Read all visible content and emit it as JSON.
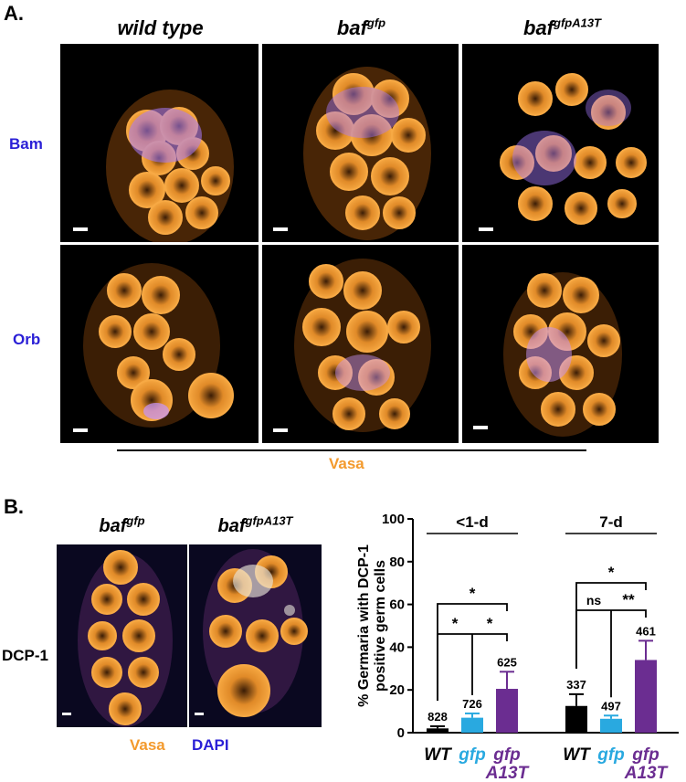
{
  "panelA": {
    "letter": "A.",
    "columns": [
      {
        "name": "wild type",
        "sup": ""
      },
      {
        "name": "baf",
        "sup": "gfp"
      },
      {
        "name": "baf",
        "sup": "gfpA13T"
      }
    ],
    "rows": [
      "Bam",
      "Orb"
    ],
    "channel_label": "Vasa",
    "colors": {
      "vasa": "#f39a2d",
      "marker": "#9b6bff",
      "dapi": "#2a1fd6"
    }
  },
  "panelB": {
    "letter": "B.",
    "columns": [
      {
        "name": "baf",
        "sup": "gfp"
      },
      {
        "name": "baf",
        "sup": "gfpA13T"
      }
    ],
    "row_label": "DCP-1",
    "legend": {
      "vasa": "Vasa",
      "dapi": "DAPI"
    }
  },
  "chart_data": {
    "type": "bar",
    "ylabel": "% Germaria with DCP-1 positive germ cells",
    "ylabel_lines": [
      "% Germaria with DCP-1",
      "positive germ cells"
    ],
    "ylim": [
      0,
      100
    ],
    "yticks": [
      0,
      20,
      40,
      60,
      80,
      100
    ],
    "groups": [
      {
        "name": "<1-d",
        "bars": [
          {
            "category": "WT",
            "value": 2,
            "error": 1,
            "n": "828",
            "color": "#000000"
          },
          {
            "category": "gfp",
            "value": 7,
            "error": 2,
            "n": "726",
            "color": "#29a9e0"
          },
          {
            "category": "gfp A13T",
            "value": 20.5,
            "error": 8,
            "n": "625",
            "color": "#6b2d91"
          }
        ],
        "significance": [
          {
            "pair": [
              "WT",
              "gfp A13T"
            ],
            "label": "*"
          },
          {
            "pair": [
              "WT",
              "gfp"
            ],
            "label": "*"
          },
          {
            "pair": [
              "gfp",
              "gfp A13T"
            ],
            "label": "*"
          }
        ]
      },
      {
        "name": "7-d",
        "bars": [
          {
            "category": "WT",
            "value": 12.5,
            "error": 5.5,
            "n": "337",
            "color": "#000000"
          },
          {
            "category": "gfp",
            "value": 6.5,
            "error": 1.5,
            "n": "497",
            "color": "#29a9e0"
          },
          {
            "category": "gfp A13T",
            "value": 34,
            "error": 9,
            "n": "461",
            "color": "#6b2d91"
          }
        ],
        "significance": [
          {
            "pair": [
              "WT",
              "gfp A13T"
            ],
            "label": "*"
          },
          {
            "pair": [
              "WT",
              "gfp"
            ],
            "label": "ns"
          },
          {
            "pair": [
              "gfp",
              "gfp A13T"
            ],
            "label": "**"
          }
        ]
      }
    ],
    "xlabels": [
      {
        "text": "WT",
        "color": "#000000"
      },
      {
        "text": "gfp",
        "color": "#29a9e0"
      },
      {
        "text": "gfp",
        "text2": "A13T",
        "color": "#6b2d91"
      },
      {
        "text": "WT",
        "color": "#000000"
      },
      {
        "text": "gfp",
        "color": "#29a9e0"
      },
      {
        "text": "gfp",
        "text2": "A13T",
        "color": "#6b2d91"
      }
    ]
  }
}
